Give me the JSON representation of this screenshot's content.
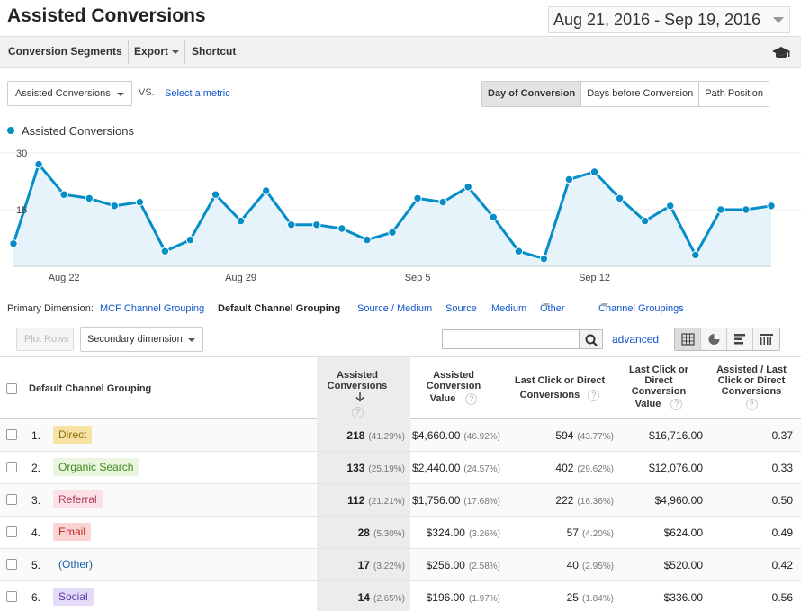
{
  "page_title": "Assisted Conversions",
  "date_range": "Aug 21, 2016 - Sep 19, 2016",
  "toolbar": {
    "conversion_segments": "Conversion Segments",
    "export": "Export",
    "shortcut": "Shortcut"
  },
  "metric_select": "Assisted Conversions",
  "vs_label": "VS.",
  "select_metric": "Select a metric",
  "view_tabs": [
    "Day of Conversion",
    "Days before Conversion",
    "Path Position"
  ],
  "legend_label": "Assisted Conversions",
  "chart_data": {
    "type": "line",
    "series": [
      {
        "name": "Assisted Conversions",
        "values": [
          6,
          27,
          19,
          18,
          16,
          17,
          4,
          7,
          19,
          12,
          20,
          11,
          11,
          10,
          7,
          9,
          18,
          17,
          21,
          13,
          4,
          2,
          23,
          25,
          18,
          12,
          16,
          3,
          15,
          15,
          16
        ]
      }
    ],
    "x": [
      "Aug 20",
      "Aug 21",
      "Aug 22",
      "Aug 23",
      "Aug 24",
      "Aug 25",
      "Aug 26",
      "Aug 27",
      "Aug 28",
      "Aug 29",
      "Aug 30",
      "Aug 31",
      "Sep 1",
      "Sep 2",
      "Sep 3",
      "Sep 4",
      "Sep 5",
      "Sep 6",
      "Sep 7",
      "Sep 8",
      "Sep 9",
      "Sep 10",
      "Sep 11",
      "Sep 12",
      "Sep 13",
      "Sep 14",
      "Sep 15",
      "Sep 16",
      "Sep 17",
      "Sep 18",
      "Sep 19"
    ],
    "x_tick_labels": [
      "Aug 22",
      "Aug 29",
      "Sep 5",
      "Sep 12"
    ],
    "y_tick_labels": [
      "30",
      "15"
    ],
    "ylim": [
      0,
      30
    ],
    "color": "#058dc7",
    "fill": "#e6f3fa"
  },
  "dimension_bar": {
    "label": "Primary Dimension:",
    "options": [
      "MCF Channel Grouping",
      "Default Channel Grouping",
      "Source / Medium",
      "Source",
      "Medium"
    ],
    "active": "Default Channel Grouping",
    "other": "Other",
    "channel_groupings": "Channel Groupings"
  },
  "controls": {
    "plot_rows": "Plot Rows",
    "secondary_dimension": "Secondary dimension",
    "search_value": "",
    "advanced": "advanced"
  },
  "table": {
    "headers": {
      "dimension": "Default Channel Grouping",
      "assisted_conversions": [
        "Assisted",
        "Conversions"
      ],
      "assisted_value": [
        "Assisted",
        "Conversion",
        "Value"
      ],
      "last_click_conversions": [
        "Last Click or Direct",
        "Conversions"
      ],
      "last_click_value": [
        "Last Click or",
        "Direct",
        "Conversion",
        "Value"
      ],
      "ratio": [
        "Assisted / Last",
        "Click or Direct",
        "Conversions"
      ],
      "help": "?"
    },
    "rows": [
      {
        "idx": "1.",
        "channel": "Direct",
        "bg": "#f6e3a3",
        "fg": "#8a6d0b",
        "ac": "218",
        "ac_pct": "(41.29%)",
        "av": "$4,660.00",
        "av_pct": "(46.92%)",
        "lc": "594",
        "lc_pct": "(43.77%)",
        "lv": "$16,716.00",
        "ratio": "0.37"
      },
      {
        "idx": "2.",
        "channel": "Organic Search",
        "bg": "#eaf6e0",
        "fg": "#3c8a1c",
        "ac": "133",
        "ac_pct": "(25.19%)",
        "av": "$2,440.00",
        "av_pct": "(24.57%)",
        "lc": "402",
        "lc_pct": "(29.62%)",
        "lv": "$12,076.00",
        "ratio": "0.33"
      },
      {
        "idx": "3.",
        "channel": "Referral",
        "bg": "#fbe1e6",
        "fg": "#b03a58",
        "ac": "112",
        "ac_pct": "(21.21%)",
        "av": "$1,756.00",
        "av_pct": "(17.68%)",
        "lc": "222",
        "lc_pct": "(16.36%)",
        "lv": "$4,960.00",
        "ratio": "0.50"
      },
      {
        "idx": "4.",
        "channel": "Email",
        "bg": "#f8d4d4",
        "fg": "#c2231f",
        "ac": "28",
        "ac_pct": "(5.30%)",
        "av": "$324.00",
        "av_pct": "(3.26%)",
        "lc": "57",
        "lc_pct": "(4.20%)",
        "lv": "$624.00",
        "ratio": "0.49"
      },
      {
        "idx": "5.",
        "channel": "(Other)",
        "bg": "transparent",
        "fg": "#1c5fa6",
        "ac": "17",
        "ac_pct": "(3.22%)",
        "av": "$256.00",
        "av_pct": "(2.58%)",
        "lc": "40",
        "lc_pct": "(2.95%)",
        "lv": "$520.00",
        "ratio": "0.42"
      },
      {
        "idx": "6.",
        "channel": "Social",
        "bg": "#e3dbf7",
        "fg": "#5b3aa8",
        "ac": "14",
        "ac_pct": "(2.65%)",
        "av": "$196.00",
        "av_pct": "(1.97%)",
        "lc": "25",
        "lc_pct": "(1.84%)",
        "lv": "$336.00",
        "ratio": "0.56"
      }
    ]
  }
}
